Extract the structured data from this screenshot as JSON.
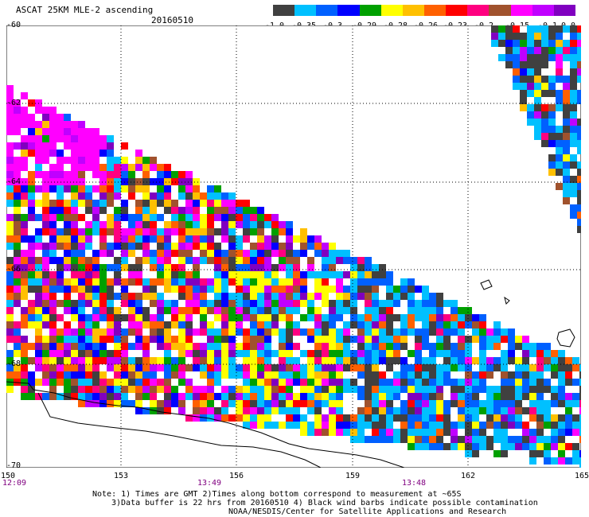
{
  "header": {
    "title": "ASCAT 25KM MLE-2 ascending",
    "date": "20160510"
  },
  "colorbar": {
    "colors": [
      "#404040",
      "#00c0ff",
      "#0060ff",
      "#0000ff",
      "#00a000",
      "#ffff00",
      "#ffc000",
      "#ff6000",
      "#ff0000",
      "#ff0080",
      "#a0522d",
      "#ff00ff",
      "#c000ff",
      "#8000c0"
    ],
    "labels": [
      "-1.0",
      "-0.35",
      "-0.3",
      "-0.29",
      "-0.28",
      "-0.26",
      "-0.23",
      "-0.2",
      "-0.15",
      "-0.1",
      "0.0"
    ]
  },
  "map": {
    "lat_labels": [
      "-60",
      "-62",
      "-64",
      "-66",
      "-68",
      "-70"
    ],
    "lon_labels": [
      "150",
      "153",
      "156",
      "159",
      "162",
      "165"
    ],
    "time_labels": [
      "12:09",
      "13:49",
      "13:48"
    ]
  },
  "notes": {
    "line1": "Note: 1) Times are GMT 2)Times along bottom correspond to measurement at ~65S",
    "line2": "3)Data buffer is 22 hrs from 20160510 4) Black wind barbs indicate possible contamination",
    "line3": "NOAA/NESDIS/Center for Satellite Applications and Research"
  }
}
